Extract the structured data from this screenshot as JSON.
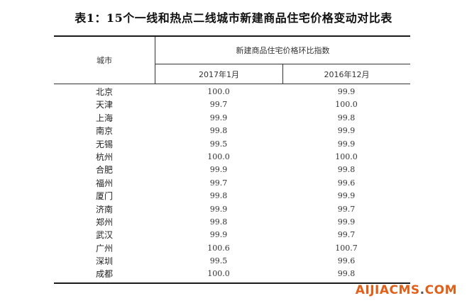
{
  "title": "表1：15个一线和热点二线城市新建商品住宅价格变动对比表",
  "table": {
    "city_header": "城市",
    "group_header": "新建商品住宅价格环比指数",
    "col1_header": "2017年1月",
    "col2_header": "2016年12月",
    "rows": [
      {
        "city": "北京",
        "jan2017": "100.0",
        "dec2016": "99.9"
      },
      {
        "city": "天津",
        "jan2017": "99.7",
        "dec2016": "100.0"
      },
      {
        "city": "上海",
        "jan2017": "99.9",
        "dec2016": "99.8"
      },
      {
        "city": "南京",
        "jan2017": "99.8",
        "dec2016": "99.9"
      },
      {
        "city": "无锡",
        "jan2017": "99.5",
        "dec2016": "99.9"
      },
      {
        "city": "杭州",
        "jan2017": "100.0",
        "dec2016": "100.0"
      },
      {
        "city": "合肥",
        "jan2017": "99.9",
        "dec2016": "99.8"
      },
      {
        "city": "福州",
        "jan2017": "99.7",
        "dec2016": "99.6"
      },
      {
        "city": "厦门",
        "jan2017": "99.8",
        "dec2016": "99.9"
      },
      {
        "city": "济南",
        "jan2017": "99.9",
        "dec2016": "99.7"
      },
      {
        "city": "郑州",
        "jan2017": "99.8",
        "dec2016": "99.9"
      },
      {
        "city": "武汉",
        "jan2017": "99.9",
        "dec2016": "99.7"
      },
      {
        "city": "广州",
        "jan2017": "100.6",
        "dec2016": "100.7"
      },
      {
        "city": "深圳",
        "jan2017": "99.5",
        "dec2016": "99.6"
      },
      {
        "city": "成都",
        "jan2017": "100.0",
        "dec2016": "99.8"
      }
    ]
  },
  "watermark": {
    "brand": "AIJIACMS",
    "dot": ".",
    "tld": "COM",
    "brand_color": "#e0601a"
  }
}
